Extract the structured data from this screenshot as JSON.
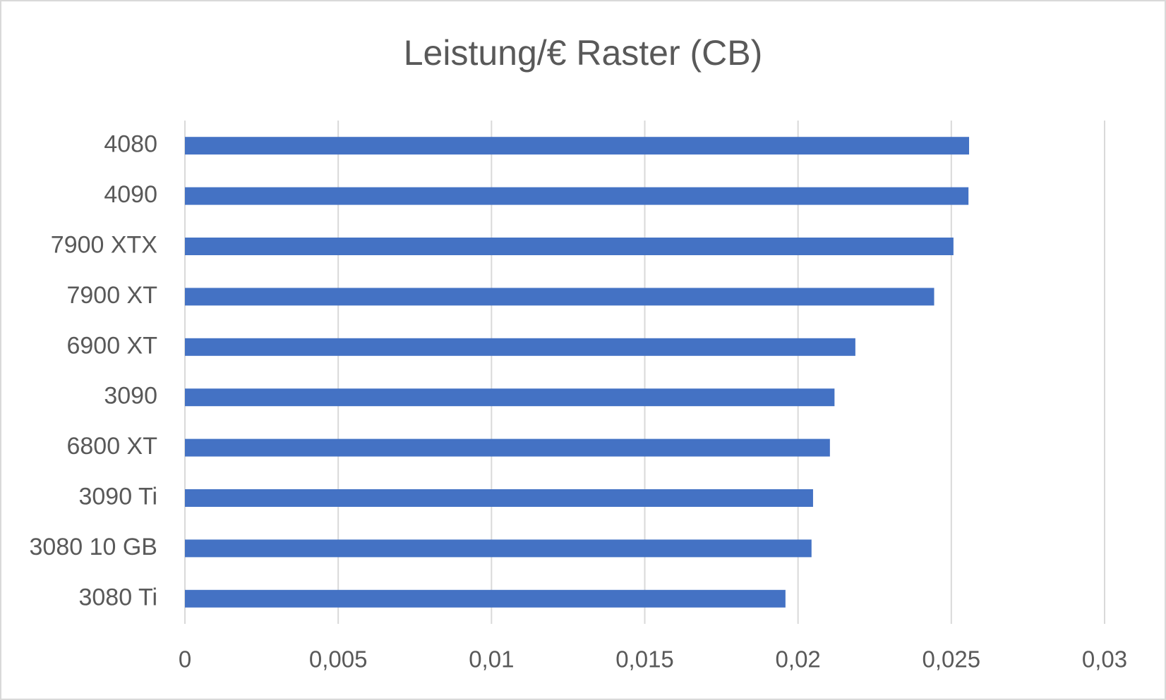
{
  "chart_data": {
    "type": "bar",
    "orientation": "horizontal",
    "title": "Leistung/€ Raster (CB)",
    "categories": [
      "4080",
      "4090",
      "7900 XTX",
      "7900 XT",
      "6900 XT",
      "3090",
      "6800 XT",
      "3090 Ti",
      "3080 10 GB",
      "3080 Ti"
    ],
    "values": [
      0.02558,
      0.02556,
      0.02507,
      0.02444,
      0.02187,
      0.02119,
      0.02104,
      0.02049,
      0.02044,
      0.01959
    ],
    "color": "#4472c4",
    "xlim": [
      0,
      0.03
    ],
    "xticks": [
      0,
      {
        "value": 0.005,
        "label": "0,005"
      },
      {
        "value": 0.01,
        "label": "0,01"
      },
      {
        "value": 0.015,
        "label": "0,015"
      },
      {
        "value": 0.02,
        "label": "0,02"
      },
      {
        "value": 0.025,
        "label": "0,025"
      },
      {
        "value": 0.03,
        "label": "0,03"
      }
    ],
    "grid": true
  }
}
